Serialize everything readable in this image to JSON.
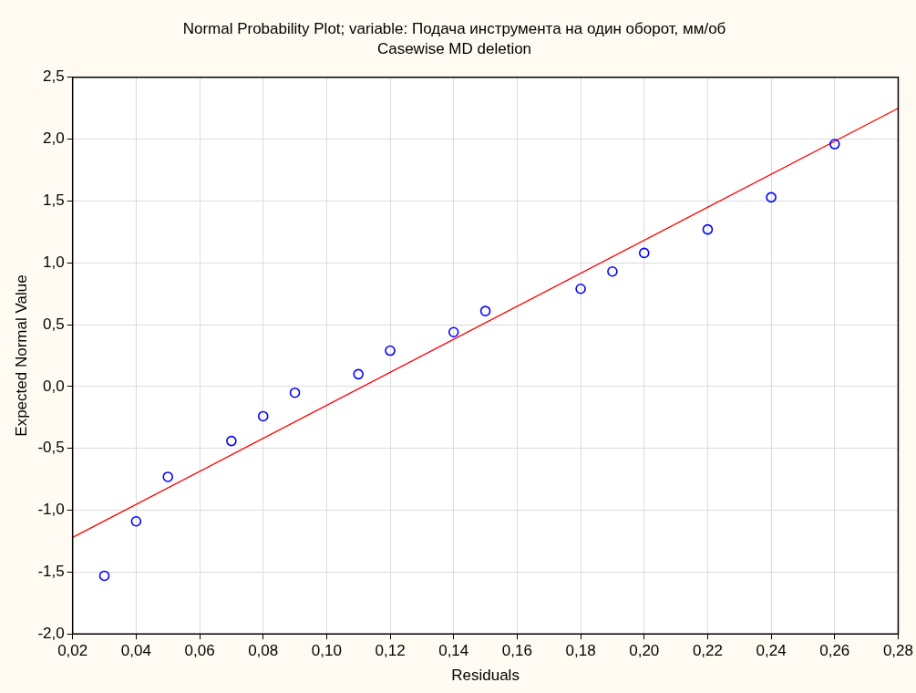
{
  "chart_data": {
    "type": "scatter",
    "title": "Normal Probability Plot; variable: Подача инструмента на один оборот, мм/об",
    "subtitle": "Casewise MD deletion",
    "xlabel": "Residuals",
    "ylabel": "Expected Normal Value",
    "xlim": [
      0.02,
      0.28
    ],
    "ylim": [
      -2.0,
      2.5
    ],
    "xticks": [
      {
        "value": 0.02,
        "label": "0,02"
      },
      {
        "value": 0.04,
        "label": "0,04"
      },
      {
        "value": 0.06,
        "label": "0,06"
      },
      {
        "value": 0.08,
        "label": "0,08"
      },
      {
        "value": 0.1,
        "label": "0,10"
      },
      {
        "value": 0.12,
        "label": "0,12"
      },
      {
        "value": 0.14,
        "label": "0,14"
      },
      {
        "value": 0.16,
        "label": "0,16"
      },
      {
        "value": 0.18,
        "label": "0,18"
      },
      {
        "value": 0.2,
        "label": "0,20"
      },
      {
        "value": 0.22,
        "label": "0,22"
      },
      {
        "value": 0.24,
        "label": "0,24"
      },
      {
        "value": 0.26,
        "label": "0,26"
      },
      {
        "value": 0.28,
        "label": "0,28"
      }
    ],
    "yticks": [
      {
        "value": -2,
        "label": "-2,0"
      },
      {
        "value": -1.5,
        "label": "-1,5"
      },
      {
        "value": -1,
        "label": "-1,0"
      },
      {
        "value": -0.5,
        "label": "-0,5"
      },
      {
        "value": 0,
        "label": "0,0"
      },
      {
        "value": 0.5,
        "label": "0,5"
      },
      {
        "value": 1,
        "label": "1,0"
      },
      {
        "value": 1.5,
        "label": "1,5"
      },
      {
        "value": 2,
        "label": "2,0"
      },
      {
        "value": 2.5,
        "label": "2,5"
      }
    ],
    "grid": true,
    "marker": "circle",
    "series": [
      {
        "type": "scatter",
        "color": "#0000ff",
        "x": [
          0.03,
          0.04,
          0.05,
          0.07,
          0.08,
          0.09,
          0.11,
          0.12,
          0.14,
          0.15,
          0.18,
          0.19,
          0.2,
          0.22,
          0.24,
          0.26
        ],
        "values": [
          -1.53,
          -1.09,
          -0.73,
          -0.44,
          -0.24,
          -0.05,
          0.1,
          0.29,
          0.44,
          0.61,
          0.79,
          0.93,
          1.08,
          1.27,
          1.53,
          1.96
        ]
      },
      {
        "type": "line",
        "color": "#ff0000",
        "marker": "none",
        "x": [
          0.02,
          0.28
        ],
        "values": [
          -1.22,
          2.25
        ]
      }
    ]
  }
}
